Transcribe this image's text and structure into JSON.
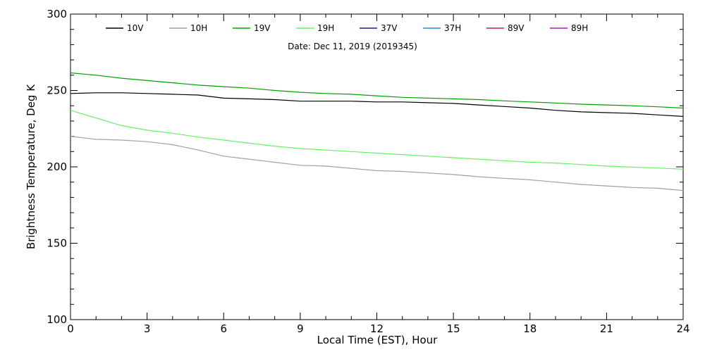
{
  "chart_data": {
    "type": "line",
    "annotation": "Date: Dec 11, 2019 (2019345)",
    "xlabel": "Local Time (EST), Hour",
    "ylabel": "Brightness Temperature, Deg K",
    "xlim": [
      0,
      24
    ],
    "ylim": [
      100,
      300
    ],
    "x_ticks": [
      0,
      3,
      6,
      9,
      12,
      15,
      18,
      21,
      24
    ],
    "y_ticks": [
      100,
      150,
      200,
      250,
      300
    ],
    "grid": false,
    "legend_placement": "top",
    "series": [
      {
        "name": "10V",
        "color": "#000000",
        "x": [
          0,
          1,
          2,
          3,
          4,
          5,
          6,
          7,
          8,
          9,
          10,
          11,
          12,
          13,
          14,
          15,
          16,
          17,
          18,
          19,
          20,
          21,
          22,
          23,
          24
        ],
        "y": [
          248,
          248.5,
          248.5,
          248,
          247.5,
          247,
          245,
          244.5,
          244,
          243,
          243,
          243,
          242.5,
          242.5,
          242,
          241.5,
          240.5,
          239.5,
          238.5,
          237,
          236,
          235.5,
          235,
          234,
          233
        ]
      },
      {
        "name": "10H",
        "color": "#a0a0a0",
        "x": [
          0,
          1,
          2,
          3,
          4,
          5,
          6,
          7,
          8,
          9,
          10,
          11,
          12,
          13,
          14,
          15,
          16,
          17,
          18,
          19,
          20,
          21,
          22,
          23,
          24
        ],
        "y": [
          220,
          218,
          217.5,
          216.5,
          214.5,
          211,
          207,
          205,
          203,
          201,
          200.5,
          199,
          197.5,
          197,
          196,
          195,
          193.5,
          192.5,
          191.5,
          190,
          188.5,
          187.5,
          186.5,
          186,
          184.5
        ]
      },
      {
        "name": "19V",
        "color": "#00a000",
        "x": [
          0,
          1,
          2,
          3,
          4,
          5,
          6,
          7,
          8,
          9,
          10,
          11,
          12,
          13,
          14,
          15,
          16,
          17,
          18,
          19,
          20,
          21,
          22,
          23,
          24
        ],
        "y": [
          261.5,
          260,
          258,
          256.5,
          255,
          253.5,
          252.5,
          251.5,
          250,
          248.8,
          248,
          247.5,
          246.5,
          245.5,
          245,
          244.5,
          244,
          243.2,
          242.5,
          241.8,
          241,
          240.5,
          240,
          239.3,
          238.5
        ]
      },
      {
        "name": "19H",
        "color": "#66ee66",
        "x": [
          0,
          1,
          2,
          3,
          4,
          5,
          6,
          7,
          8,
          9,
          10,
          11,
          12,
          13,
          14,
          15,
          16,
          17,
          18,
          19,
          20,
          21,
          22,
          23,
          24
        ],
        "y": [
          237,
          232,
          227,
          224,
          222,
          219.5,
          217.5,
          215.5,
          213.5,
          212,
          211,
          210,
          209,
          208,
          207,
          206,
          205,
          204,
          203,
          202.5,
          201.5,
          200.5,
          199.8,
          199.2,
          198.5
        ]
      },
      {
        "name": "37V",
        "color": "#202080",
        "x": [],
        "y": []
      },
      {
        "name": "37H",
        "color": "#2090d0",
        "x": [],
        "y": []
      },
      {
        "name": "89V",
        "color": "#c02040",
        "x": [],
        "y": []
      },
      {
        "name": "89H",
        "color": "#a020b0",
        "x": [],
        "y": []
      }
    ]
  }
}
